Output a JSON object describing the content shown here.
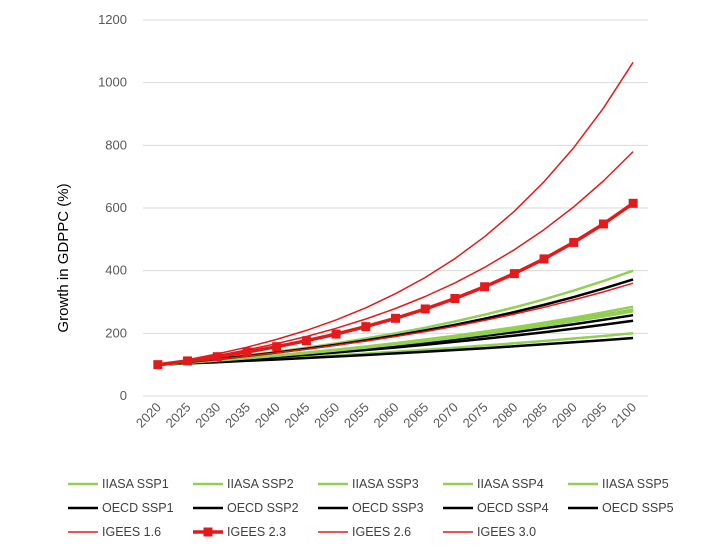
{
  "chart_data": {
    "type": "line",
    "title": "",
    "xlabel": "",
    "ylabel": "Growth in GDPPC (%)",
    "ylim": [
      0,
      1200
    ],
    "yticks": [
      0,
      200,
      400,
      600,
      800,
      1000,
      1200
    ],
    "x": [
      "2020",
      "2025",
      "2030",
      "2035",
      "2040",
      "2045",
      "2050",
      "2055",
      "2060",
      "2065",
      "2070",
      "2075",
      "2080",
      "2085",
      "2090",
      "2095",
      "2100"
    ],
    "grid": "horizontal",
    "legend_position": "bottom",
    "series": [
      {
        "name": "IIASA SSP1",
        "color": "#92d050",
        "width": 2.5,
        "end": 400
      },
      {
        "name": "IIASA SSP2",
        "color": "#92d050",
        "width": 2.5,
        "end": 285
      },
      {
        "name": "IIASA SSP3",
        "color": "#92d050",
        "width": 2.5,
        "end": 200
      },
      {
        "name": "IIASA SSP4",
        "color": "#92d050",
        "width": 2.5,
        "end": 275
      },
      {
        "name": "IIASA SSP5",
        "color": "#92d050",
        "width": 2.5,
        "end": 270
      },
      {
        "name": "OECD SSP1",
        "color": "#000000",
        "width": 2.5,
        "end": 275
      },
      {
        "name": "OECD SSP2",
        "color": "#000000",
        "width": 2.5,
        "end": 258
      },
      {
        "name": "OECD SSP3",
        "color": "#000000",
        "width": 2.5,
        "end": 185
      },
      {
        "name": "OECD SSP4",
        "color": "#000000",
        "width": 2.5,
        "end": 240
      },
      {
        "name": "OECD SSP5",
        "color": "#000000",
        "width": 2.5,
        "end": 372
      },
      {
        "name": "IGEES 1.6",
        "color": "#e31a1c",
        "width": 1.5,
        "end": 360
      },
      {
        "name": "IGEES 2.3",
        "color": "#e31a1c",
        "width": 3.5,
        "end": 615,
        "marker": "square"
      },
      {
        "name": "IGEES 2.6",
        "color": "#e31a1c",
        "width": 1.5,
        "end": 780
      },
      {
        "name": "IGEES 3.0",
        "color": "#e31a1c",
        "width": 1.5,
        "end": 1065
      }
    ]
  }
}
